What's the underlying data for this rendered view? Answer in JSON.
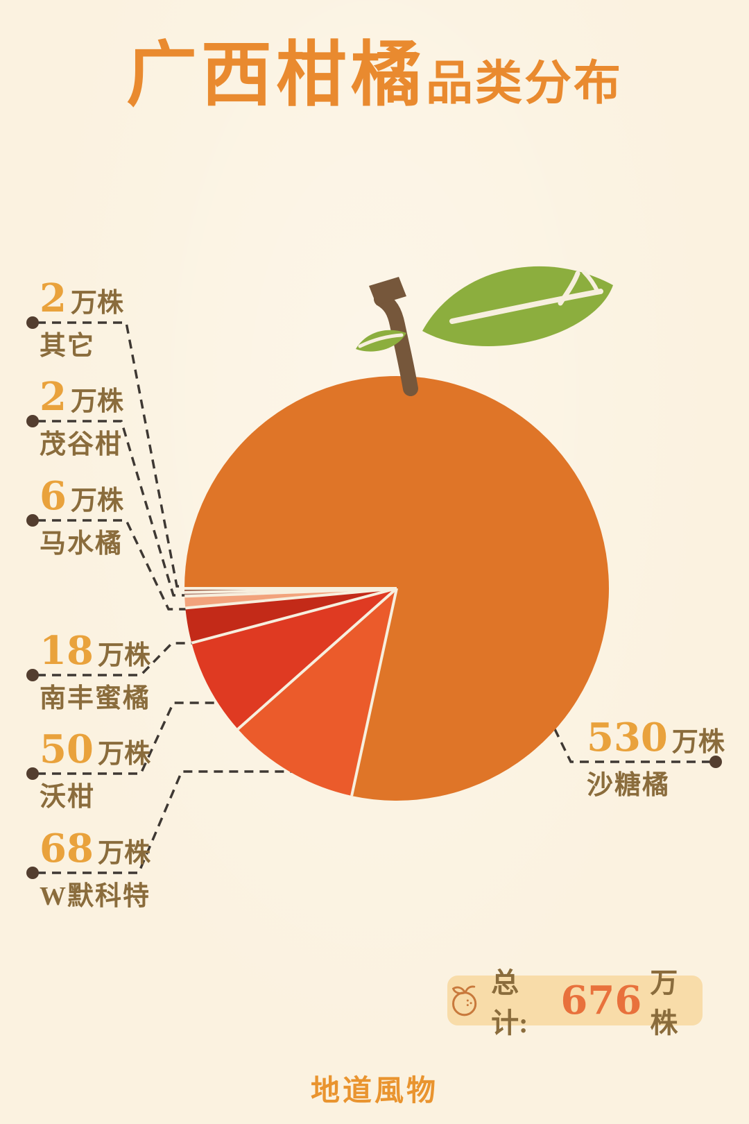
{
  "title": {
    "main": "广西柑橘",
    "sub": "品类分布"
  },
  "chart_data": {
    "type": "pie",
    "title": "广西柑橘品类分布",
    "unit": "万株",
    "total": 676,
    "start_angle_deg": 180,
    "sweep_direction": "downward-from-left-edge",
    "legend_position": "leader-line-callouts",
    "slices": [
      {
        "name": "其它",
        "value": 2,
        "color": "#8E4D36"
      },
      {
        "name": "茂谷柑",
        "value": 2,
        "color": "#B28173"
      },
      {
        "name": "马水橘",
        "value": 6,
        "color": "#F2A37C"
      },
      {
        "name": "南丰蜜橘",
        "value": 18,
        "color": "#C32A18"
      },
      {
        "name": "沃柑",
        "value": 50,
        "color": "#DF3A22"
      },
      {
        "name": "W默科特",
        "value": 68,
        "color": "#EB5B2B"
      },
      {
        "name": "沙糖橘",
        "value": 530,
        "color": "#DF7528"
      }
    ]
  },
  "total_box": {
    "icon": "orange-fruit-outline-icon",
    "label": "总计:",
    "value": "676",
    "unit": "万株"
  },
  "footer": {
    "brand": "地道風物"
  },
  "colors": {
    "background": "#FBF2E0",
    "title_orange": "#E98A2F",
    "number_gold": "#E9A23C",
    "text_brown": "#8A6C3C",
    "leader_line": "#3E3833",
    "leader_dot": "#533E2F",
    "slice_separator": "#F7EFDE",
    "leaf_green": "#8CAE3E",
    "stem_brown": "#76573B",
    "total_box_bg": "#F8DCA9",
    "total_value_orange": "#E8713C",
    "footer_orange": "#E9942F"
  }
}
